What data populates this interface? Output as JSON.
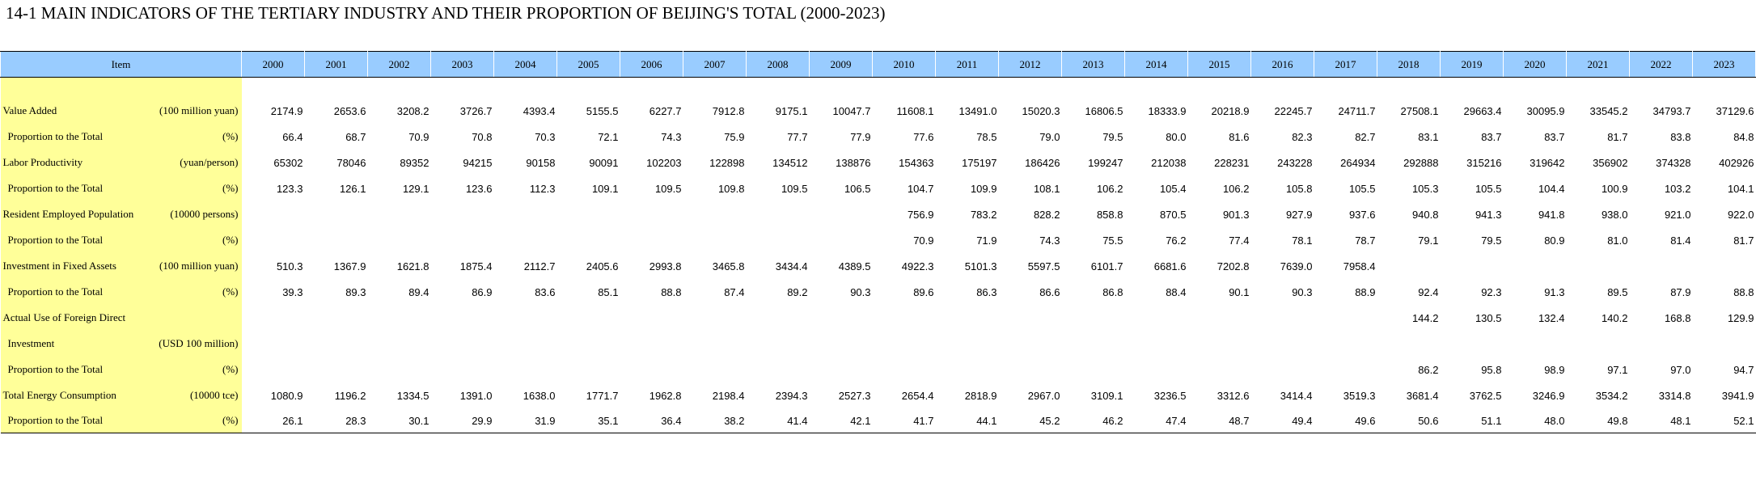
{
  "title": "14-1  MAIN INDICATORS OF THE TERTIARY INDUSTRY AND THEIR PROPORTION OF BEIJING'S TOTAL (2000-2023)",
  "table": {
    "item_header": "Item",
    "years": [
      "2000",
      "2001",
      "2002",
      "2003",
      "2004",
      "2005",
      "2006",
      "2007",
      "2008",
      "2009",
      "2010",
      "2011",
      "2012",
      "2013",
      "2014",
      "2015",
      "2016",
      "2017",
      "2018",
      "2019",
      "2020",
      "2021",
      "2022",
      "2023"
    ],
    "rows": [
      {
        "label": "Value Added",
        "unit": "(100 million yuan)",
        "sub": false,
        "values": [
          "2174.9",
          "2653.6",
          "3208.2",
          "3726.7",
          "4393.4",
          "5155.5",
          "6227.7",
          "7912.8",
          "9175.1",
          "10047.7",
          "11608.1",
          "13491.0",
          "15020.3",
          "16806.5",
          "18333.9",
          "20218.9",
          "22245.7",
          "24711.7",
          "27508.1",
          "29663.4",
          "30095.9",
          "33545.2",
          "34793.7",
          "37129.6"
        ]
      },
      {
        "label": "Proportion to the Total",
        "unit": "(%)",
        "sub": true,
        "values": [
          "66.4",
          "68.7",
          "70.9",
          "70.8",
          "70.3",
          "72.1",
          "74.3",
          "75.9",
          "77.7",
          "77.9",
          "77.6",
          "78.5",
          "79.0",
          "79.5",
          "80.0",
          "81.6",
          "82.3",
          "82.7",
          "83.1",
          "83.7",
          "83.7",
          "81.7",
          "83.8",
          "84.8"
        ]
      },
      {
        "label": "Labor Productivity",
        "unit": "(yuan/person)",
        "sub": false,
        "values": [
          "65302",
          "78046",
          "89352",
          "94215",
          "90158",
          "90091",
          "102203",
          "122898",
          "134512",
          "138876",
          "154363",
          "175197",
          "186426",
          "199247",
          "212038",
          "228231",
          "243228",
          "264934",
          "292888",
          "315216",
          "319642",
          "356902",
          "374328",
          "402926"
        ]
      },
      {
        "label": "Proportion to the Total",
        "unit": "(%)",
        "sub": true,
        "values": [
          "123.3",
          "126.1",
          "129.1",
          "123.6",
          "112.3",
          "109.1",
          "109.5",
          "109.8",
          "109.5",
          "106.5",
          "104.7",
          "109.9",
          "108.1",
          "106.2",
          "105.4",
          "106.2",
          "105.8",
          "105.5",
          "105.3",
          "105.5",
          "104.4",
          "100.9",
          "103.2",
          "104.1"
        ]
      },
      {
        "label": "Resident Employed Population",
        "unit": "(10000 persons)",
        "sub": false,
        "values": [
          "",
          "",
          "",
          "",
          "",
          "",
          "",
          "",
          "",
          "",
          "756.9",
          "783.2",
          "828.2",
          "858.8",
          "870.5",
          "901.3",
          "927.9",
          "937.6",
          "940.8",
          "941.3",
          "941.8",
          "938.0",
          "921.0",
          "922.0"
        ]
      },
      {
        "label": "Proportion to the Total",
        "unit": "(%)",
        "sub": true,
        "values": [
          "",
          "",
          "",
          "",
          "",
          "",
          "",
          "",
          "",
          "",
          "70.9",
          "71.9",
          "74.3",
          "75.5",
          "76.2",
          "77.4",
          "78.1",
          "78.7",
          "79.1",
          "79.5",
          "80.9",
          "81.0",
          "81.4",
          "81.7"
        ]
      },
      {
        "label": "Investment in Fixed Assets",
        "unit": "(100 million yuan)",
        "sub": false,
        "values": [
          "510.3",
          "1367.9",
          "1621.8",
          "1875.4",
          "2112.7",
          "2405.6",
          "2993.8",
          "3465.8",
          "3434.4",
          "4389.5",
          "4922.3",
          "5101.3",
          "5597.5",
          "6101.7",
          "6681.6",
          "7202.8",
          "7639.0",
          "7958.4",
          "",
          "",
          "",
          "",
          "",
          ""
        ]
      },
      {
        "label": "Proportion to the Total",
        "unit": "(%)",
        "sub": true,
        "values": [
          "39.3",
          "89.3",
          "89.4",
          "86.9",
          "83.6",
          "85.1",
          "88.8",
          "87.4",
          "89.2",
          "90.3",
          "89.6",
          "86.3",
          "86.6",
          "86.8",
          "88.4",
          "90.1",
          "90.3",
          "88.9",
          "92.4",
          "92.3",
          "91.3",
          "89.5",
          "87.9",
          "88.8"
        ]
      },
      {
        "label": "Actual Use of Foreign Direct",
        "unit": "",
        "sub": false,
        "values": [
          "",
          "",
          "",
          "",
          "",
          "",
          "",
          "",
          "",
          "",
          "",
          "",
          "",
          "",
          "",
          "",
          "",
          "",
          "144.2",
          "130.5",
          "132.4",
          "140.2",
          "168.8",
          "129.9"
        ]
      },
      {
        "label": "Investment",
        "unit": "(USD 100 million)",
        "sub": true,
        "values": [
          "",
          "",
          "",
          "",
          "",
          "",
          "",
          "",
          "",
          "",
          "",
          "",
          "",
          "",
          "",
          "",
          "",
          "",
          "",
          "",
          "",
          "",
          "",
          ""
        ]
      },
      {
        "label": "Proportion to the Total",
        "unit": "(%)",
        "sub": true,
        "values": [
          "",
          "",
          "",
          "",
          "",
          "",
          "",
          "",
          "",
          "",
          "",
          "",
          "",
          "",
          "",
          "",
          "",
          "",
          "86.2",
          "95.8",
          "98.9",
          "97.1",
          "97.0",
          "94.7"
        ]
      },
      {
        "label": "Total Energy  Consumption",
        "unit": "(10000 tce)",
        "sub": false,
        "values": [
          "1080.9",
          "1196.2",
          "1334.5",
          "1391.0",
          "1638.0",
          "1771.7",
          "1962.8",
          "2198.4",
          "2394.3",
          "2527.3",
          "2654.4",
          "2818.9",
          "2967.0",
          "3109.1",
          "3236.5",
          "3312.6",
          "3414.4",
          "3519.3",
          "3681.4",
          "3762.5",
          "3246.9",
          "3534.2",
          "3314.8",
          "3941.9"
        ]
      },
      {
        "label": "Proportion to the Total",
        "unit": "(%)",
        "sub": true,
        "values": [
          "26.1",
          "28.3",
          "30.1",
          "29.9",
          "31.9",
          "35.1",
          "36.4",
          "38.2",
          "41.4",
          "42.1",
          "41.7",
          "44.1",
          "45.2",
          "46.2",
          "47.4",
          "48.7",
          "49.4",
          "49.6",
          "50.6",
          "51.1",
          "48.0",
          "49.8",
          "48.1",
          "52.1"
        ]
      }
    ]
  }
}
